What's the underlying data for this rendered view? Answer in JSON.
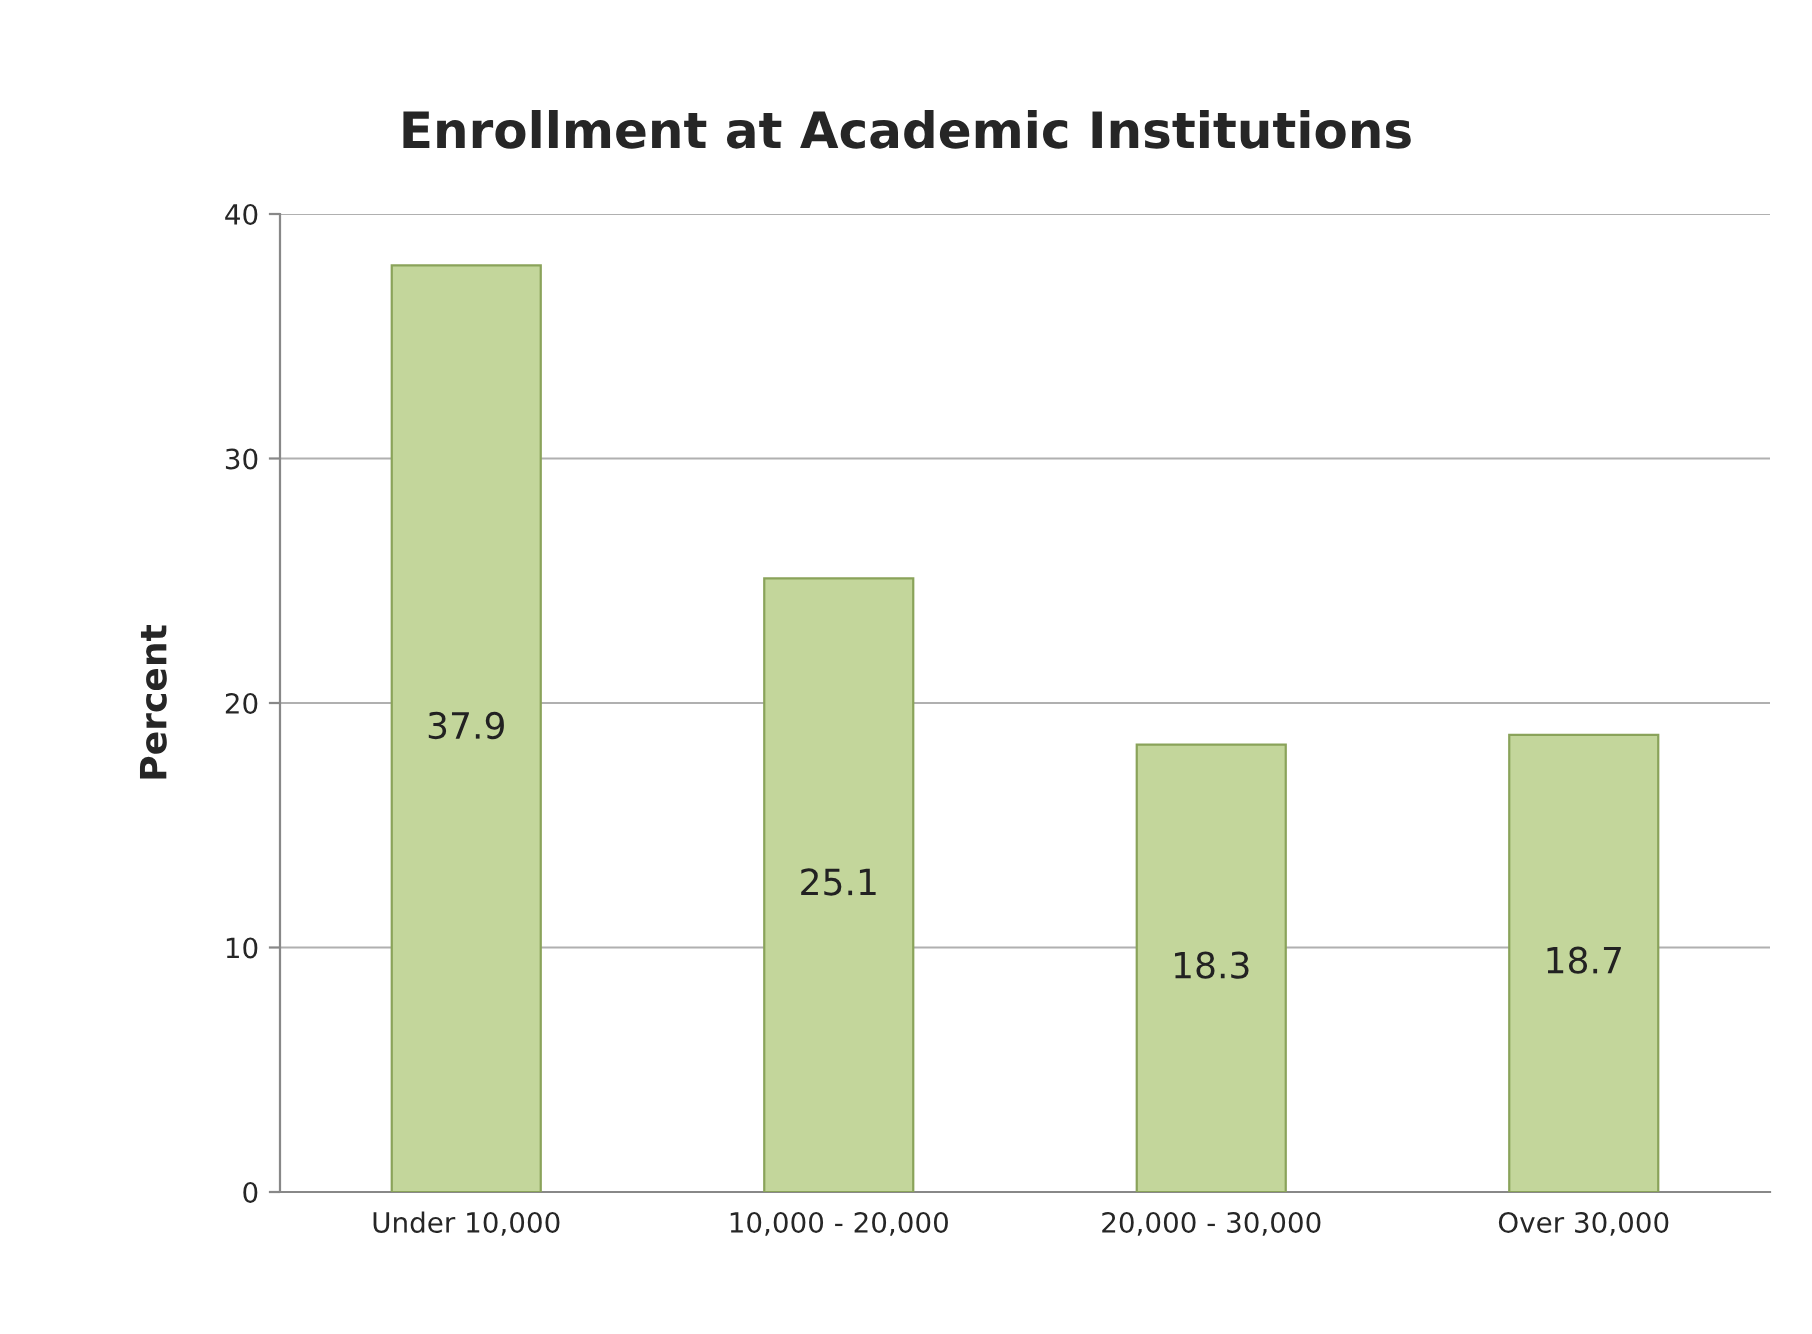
{
  "chart_data": {
    "type": "bar",
    "title": "Enrollment at Academic Institutions",
    "ylabel": "Percent",
    "categories": [
      "Under 10,000",
      "10,000 - 20,000",
      "20,000 - 30,000",
      "Over 30,000"
    ],
    "values": [
      37.9,
      25.1,
      18.3,
      18.7
    ],
    "color": "#c3d69b",
    "ylim": [
      0,
      40
    ],
    "yticks": [
      0,
      10,
      20,
      30,
      40
    ],
    "grid": "y",
    "data_labels": true
  }
}
